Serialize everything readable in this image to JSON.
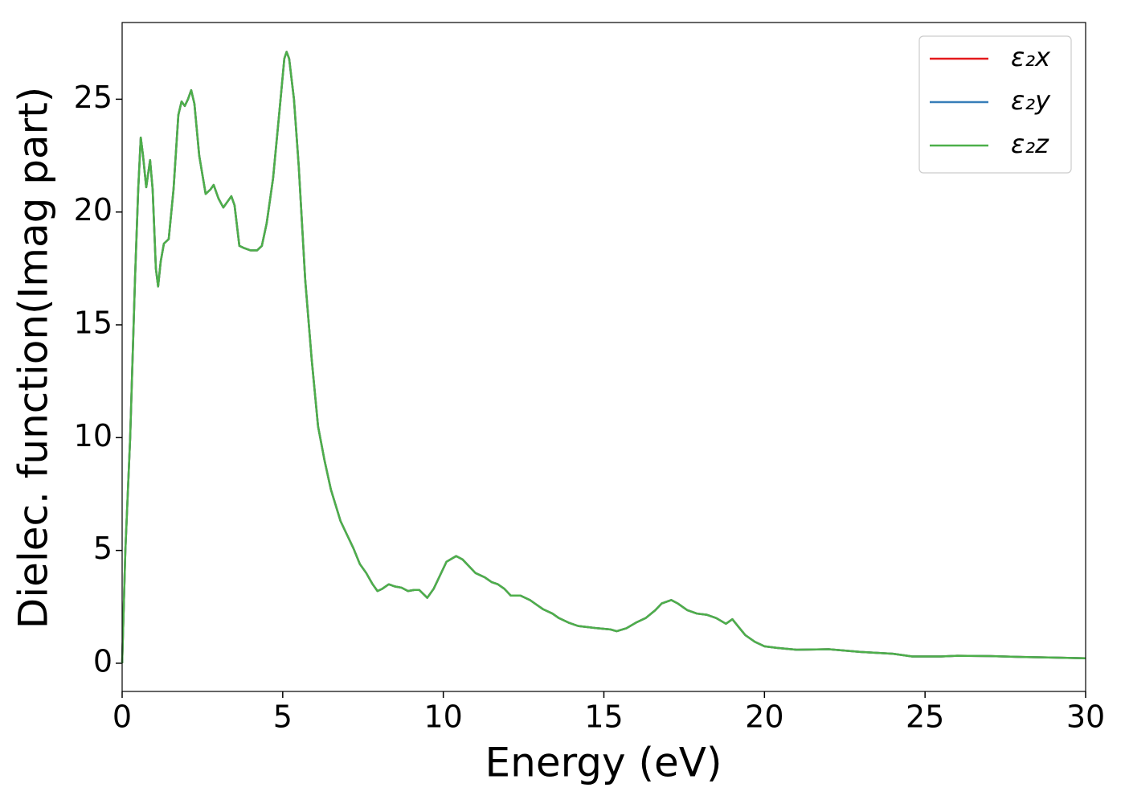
{
  "chart_data": {
    "type": "line",
    "xlabel": "Energy (eV)",
    "ylabel": "Dielec. function(Imag part)",
    "x": [
      0,
      0.1,
      0.25,
      0.4,
      0.5,
      0.58,
      0.65,
      0.75,
      0.87,
      0.95,
      1.05,
      1.12,
      1.2,
      1.3,
      1.45,
      1.6,
      1.75,
      1.85,
      1.95,
      2.05,
      2.15,
      2.25,
      2.4,
      2.6,
      2.75,
      2.85,
      3.0,
      3.15,
      3.3,
      3.4,
      3.5,
      3.65,
      3.8,
      4.0,
      4.2,
      4.35,
      4.5,
      4.7,
      4.9,
      5.05,
      5.12,
      5.2,
      5.35,
      5.5,
      5.7,
      5.9,
      6.1,
      6.3,
      6.5,
      6.8,
      7.0,
      7.2,
      7.4,
      7.6,
      7.8,
      7.95,
      8.1,
      8.3,
      8.5,
      8.7,
      8.9,
      9.1,
      9.25,
      9.5,
      9.7,
      9.9,
      10.1,
      10.4,
      10.6,
      10.8,
      11.0,
      11.3,
      11.5,
      11.7,
      11.9,
      12.1,
      12.4,
      12.7,
      12.9,
      13.1,
      13.4,
      13.6,
      13.9,
      14.2,
      14.5,
      14.8,
      15.2,
      15.4,
      15.7,
      16.0,
      16.3,
      16.6,
      16.8,
      17.1,
      17.3,
      17.6,
      17.9,
      18.2,
      18.5,
      18.8,
      19.0,
      19.2,
      19.4,
      19.7,
      20.0,
      20.4,
      21,
      22,
      23,
      24,
      24.6,
      25.5,
      26,
      27,
      28,
      29,
      30
    ],
    "series": [
      {
        "name": "ε₂x",
        "color": "#e41a1c",
        "values": [
          0,
          5,
          10,
          17,
          21,
          23.3,
          22.5,
          21.1,
          22.3,
          21,
          17.5,
          16.7,
          17.8,
          18.6,
          18.8,
          21,
          24.3,
          24.9,
          24.7,
          25,
          25.4,
          24.8,
          22.5,
          20.8,
          21,
          21.2,
          20.6,
          20.2,
          20.5,
          20.7,
          20.3,
          18.5,
          18.4,
          18.3,
          18.3,
          18.5,
          19.5,
          21.5,
          24.5,
          26.8,
          27.1,
          26.8,
          25,
          22,
          17,
          13.5,
          10.5,
          9,
          7.7,
          6.3,
          5.7,
          5.1,
          4.4,
          4.0,
          3.5,
          3.2,
          3.3,
          3.5,
          3.4,
          3.35,
          3.2,
          3.25,
          3.25,
          2.9,
          3.3,
          3.9,
          4.5,
          4.75,
          4.6,
          4.3,
          4.0,
          3.8,
          3.6,
          3.5,
          3.3,
          3.0,
          3.0,
          2.8,
          2.6,
          2.4,
          2.2,
          2.0,
          1.8,
          1.65,
          1.6,
          1.55,
          1.5,
          1.42,
          1.55,
          1.8,
          2.0,
          2.35,
          2.65,
          2.8,
          2.65,
          2.35,
          2.2,
          2.15,
          2.0,
          1.75,
          1.95,
          1.6,
          1.25,
          0.95,
          0.75,
          0.68,
          0.6,
          0.62,
          0.5,
          0.42,
          0.3,
          0.3,
          0.33,
          0.32,
          0.28,
          0.25,
          0.22
        ]
      },
      {
        "name": "ε₂y",
        "color": "#377eb8",
        "values": [
          0,
          5,
          10,
          17,
          21,
          23.3,
          22.5,
          21.1,
          22.3,
          21,
          17.5,
          16.7,
          17.8,
          18.6,
          18.8,
          21,
          24.3,
          24.9,
          24.7,
          25,
          25.4,
          24.8,
          22.5,
          20.8,
          21,
          21.2,
          20.6,
          20.2,
          20.5,
          20.7,
          20.3,
          18.5,
          18.4,
          18.3,
          18.3,
          18.5,
          19.5,
          21.5,
          24.5,
          26.8,
          27.1,
          26.8,
          25,
          22,
          17,
          13.5,
          10.5,
          9,
          7.7,
          6.3,
          5.7,
          5.1,
          4.4,
          4.0,
          3.5,
          3.2,
          3.3,
          3.5,
          3.4,
          3.35,
          3.2,
          3.25,
          3.25,
          2.9,
          3.3,
          3.9,
          4.5,
          4.75,
          4.6,
          4.3,
          4.0,
          3.8,
          3.6,
          3.5,
          3.3,
          3.0,
          3.0,
          2.8,
          2.6,
          2.4,
          2.2,
          2.0,
          1.8,
          1.65,
          1.6,
          1.55,
          1.5,
          1.42,
          1.55,
          1.8,
          2.0,
          2.35,
          2.65,
          2.8,
          2.65,
          2.35,
          2.2,
          2.15,
          2.0,
          1.75,
          1.95,
          1.6,
          1.25,
          0.95,
          0.75,
          0.68,
          0.6,
          0.62,
          0.5,
          0.42,
          0.3,
          0.3,
          0.33,
          0.32,
          0.28,
          0.25,
          0.22
        ]
      },
      {
        "name": "ε₂z",
        "color": "#4daf4a",
        "values": [
          0,
          5,
          10,
          17,
          21,
          23.3,
          22.5,
          21.1,
          22.3,
          21,
          17.5,
          16.7,
          17.8,
          18.6,
          18.8,
          21,
          24.3,
          24.9,
          24.7,
          25,
          25.4,
          24.8,
          22.5,
          20.8,
          21,
          21.2,
          20.6,
          20.2,
          20.5,
          20.7,
          20.3,
          18.5,
          18.4,
          18.3,
          18.3,
          18.5,
          19.5,
          21.5,
          24.5,
          26.8,
          27.1,
          26.8,
          25,
          22,
          17,
          13.5,
          10.5,
          9,
          7.7,
          6.3,
          5.7,
          5.1,
          4.4,
          4.0,
          3.5,
          3.2,
          3.3,
          3.5,
          3.4,
          3.35,
          3.2,
          3.25,
          3.25,
          2.9,
          3.3,
          3.9,
          4.5,
          4.75,
          4.6,
          4.3,
          4.0,
          3.8,
          3.6,
          3.5,
          3.3,
          3.0,
          3.0,
          2.8,
          2.6,
          2.4,
          2.2,
          2.0,
          1.8,
          1.65,
          1.6,
          1.55,
          1.5,
          1.42,
          1.55,
          1.8,
          2.0,
          2.35,
          2.65,
          2.8,
          2.65,
          2.35,
          2.2,
          2.15,
          2.0,
          1.75,
          1.95,
          1.6,
          1.25,
          0.95,
          0.75,
          0.68,
          0.6,
          0.62,
          0.5,
          0.42,
          0.3,
          0.3,
          0.33,
          0.32,
          0.28,
          0.25,
          0.22
        ]
      }
    ],
    "xlim": [
      0,
      30
    ],
    "xticks": [
      0,
      5,
      10,
      15,
      20,
      25,
      30
    ],
    "ylim": [
      -1.25,
      28.4
    ],
    "yticks": [
      0,
      5,
      10,
      15,
      20,
      25
    ],
    "legend": "upper right"
  }
}
